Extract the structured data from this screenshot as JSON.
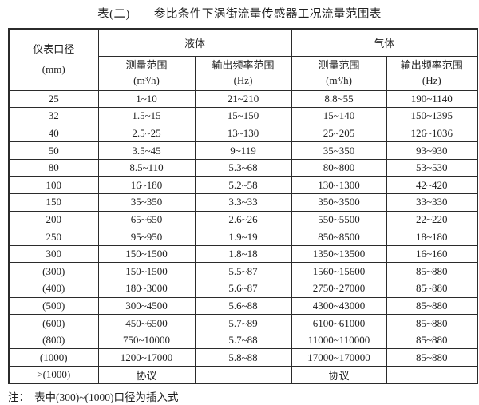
{
  "title": {
    "prefix": "表(二)",
    "main": "参比条件下涡街流量传感器工况流量范围表"
  },
  "table": {
    "header": {
      "diameter": "仪表口径",
      "diameter_unit": "(mm)",
      "liquid": "液体",
      "gas": "气体",
      "measure": "测量范围",
      "measure_unit": "(m³/h)",
      "frequency": "输出频率范围",
      "frequency_unit": "(Hz)"
    },
    "rows": [
      [
        "25",
        "1~10",
        "21~210",
        "8.8~55",
        "190~1140"
      ],
      [
        "32",
        "1.5~15",
        "15~150",
        "15~140",
        "150~1395"
      ],
      [
        "40",
        "2.5~25",
        "13~130",
        "25~205",
        "126~1036"
      ],
      [
        "50",
        "3.5~45",
        "9~119",
        "35~350",
        "93~930"
      ],
      [
        "80",
        "8.5~110",
        "5.3~68",
        "80~800",
        "53~530"
      ],
      [
        "100",
        "16~180",
        "5.2~58",
        "130~1300",
        "42~420"
      ],
      [
        "150",
        "35~350",
        "3.3~33",
        "350~3500",
        "33~330"
      ],
      [
        "200",
        "65~650",
        "2.6~26",
        "550~5500",
        "22~220"
      ],
      [
        "250",
        "95~950",
        "1.9~19",
        "850~8500",
        "18~180"
      ],
      [
        "300",
        "150~1500",
        "1.8~18",
        "1350~13500",
        "16~160"
      ],
      [
        "(300)",
        "150~1500",
        "5.5~87",
        "1560~15600",
        "85~880"
      ],
      [
        "(400)",
        "180~3000",
        "5.6~87",
        "2750~27000",
        "85~880"
      ],
      [
        "(500)",
        "300~4500",
        "5.6~88",
        "4300~43000",
        "85~880"
      ],
      [
        "(600)",
        "450~6500",
        "5.7~89",
        "6100~61000",
        "85~880"
      ],
      [
        "(800)",
        "750~10000",
        "5.7~88",
        "11000~110000",
        "85~880"
      ],
      [
        "(1000)",
        "1200~17000",
        "5.8~88",
        "17000~170000",
        "85~880"
      ],
      [
        ">(1000)",
        "协议",
        "",
        "协议",
        ""
      ]
    ]
  },
  "note": {
    "label": "注：",
    "text": "表中(300)~(1000)口径为插入式"
  }
}
